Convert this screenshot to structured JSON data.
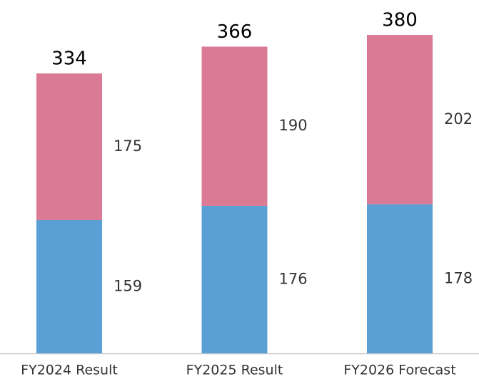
{
  "chart_data": {
    "type": "stacked_bar",
    "categories": [
      "FY2024 Result",
      "FY2025 Result",
      "FY2026 Forecast"
    ],
    "series": [
      {
        "color": "#5aa0d4",
        "values": [
          159,
          176,
          178
        ]
      },
      {
        "color": "#db7a95",
        "values": [
          175,
          190,
          202
        ]
      }
    ],
    "totals": [
      334,
      366,
      380
    ]
  }
}
